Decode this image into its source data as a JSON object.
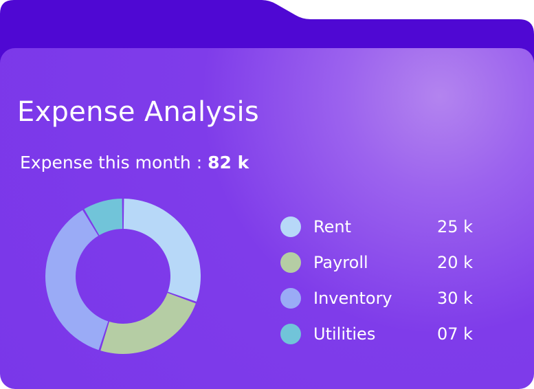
{
  "title": "Expense Analysis",
  "subtitle": {
    "label": "Expense this month :",
    "value": "82 k"
  },
  "colors": {
    "tab": "#4f08d3",
    "card": "#7c3aed"
  },
  "chart_data": {
    "type": "pie",
    "variant": "donut",
    "categories": [
      "Rent",
      "Payroll",
      "Inventory",
      "Utilities"
    ],
    "values": [
      25,
      20,
      30,
      7
    ],
    "value_labels": [
      "25 k",
      "20 k",
      "30 k",
      "07 k"
    ],
    "colors": [
      "#b7d8f8",
      "#b5cda4",
      "#9aabf6",
      "#71c4d9"
    ],
    "legend": "right"
  }
}
